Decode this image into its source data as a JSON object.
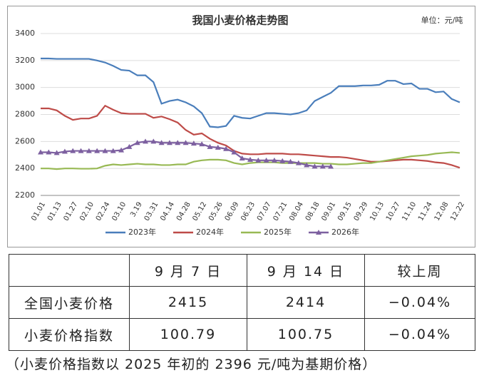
{
  "chart_data": {
    "type": "line",
    "title": "我国小麦价格走势图",
    "unit_note": "单位：元/吨",
    "categories": [
      "01.01",
      null,
      "01.13",
      null,
      "01.27",
      null,
      "02.10",
      null,
      "02.24",
      null,
      "03.10",
      null,
      "3.19",
      null,
      "03.31",
      null,
      "04.14",
      null,
      "04.28",
      null,
      "05.12",
      null,
      "05.26",
      null,
      "06.09",
      null,
      "06.23",
      null,
      "07.07",
      null,
      "07.21",
      null,
      "08.04",
      null,
      "08.18",
      null,
      "09.01",
      null,
      "09.15",
      null,
      "09.29",
      null,
      "10.13",
      null,
      "10.27",
      null,
      "11.10",
      null,
      "11.24",
      null,
      "12.08",
      null,
      "12.22"
    ],
    "ylim": [
      2200,
      3400
    ],
    "yticks": [
      2200,
      2400,
      2600,
      2800,
      3000,
      3200,
      3400
    ],
    "grid": true,
    "legend": "bottom",
    "series": [
      {
        "name": "2023年",
        "color": "#4a7ebb",
        "marker": "none",
        "values": [
          3215,
          3215,
          3212,
          3212,
          3212,
          3212,
          3212,
          3200,
          3185,
          3160,
          3130,
          3125,
          3090,
          3090,
          3040,
          2880,
          2900,
          2910,
          2890,
          2860,
          2810,
          2710,
          2705,
          2715,
          2790,
          2775,
          2770,
          2790,
          2810,
          2810,
          2805,
          2800,
          2810,
          2830,
          2900,
          2930,
          2960,
          3010,
          3010,
          3010,
          3015,
          3015,
          3020,
          3050,
          3050,
          3025,
          3030,
          2990,
          2990,
          2965,
          2970,
          2915,
          2890
        ]
      },
      {
        "name": "2024年",
        "color": "#be4b48",
        "marker": "none",
        "values": [
          2845,
          2845,
          2830,
          2790,
          2760,
          2770,
          2770,
          2790,
          2865,
          2835,
          2810,
          2805,
          2805,
          2805,
          2775,
          2785,
          2765,
          2740,
          2685,
          2650,
          2660,
          2620,
          2590,
          2570,
          2530,
          2510,
          2505,
          2505,
          2510,
          2510,
          2510,
          2505,
          2505,
          2500,
          2495,
          2490,
          2485,
          2485,
          2480,
          2470,
          2460,
          2450,
          2450,
          2455,
          2460,
          2465,
          2465,
          2460,
          2455,
          2445,
          2440,
          2425,
          2405
        ]
      },
      {
        "name": "2025年",
        "color": "#98b954",
        "marker": "none",
        "values": [
          2400,
          2400,
          2395,
          2400,
          2400,
          2398,
          2398,
          2400,
          2420,
          2430,
          2425,
          2430,
          2435,
          2430,
          2430,
          2425,
          2425,
          2430,
          2430,
          2450,
          2460,
          2465,
          2465,
          2460,
          2440,
          2430,
          2440,
          2445,
          2445,
          2445,
          2440,
          2440,
          2440,
          2440,
          2440,
          2435,
          2435,
          2430,
          2430,
          2435,
          2440,
          2440,
          2450,
          2460,
          2470,
          2480,
          2490,
          2495,
          2500,
          2510,
          2515,
          2520,
          2515
        ]
      },
      {
        "name": "2026年",
        "color": "#7d60a0",
        "marker": "triangle",
        "values": [
          2520,
          2520,
          2515,
          2525,
          2530,
          2530,
          2530,
          2530,
          2530,
          2530,
          2535,
          2560,
          2590,
          2600,
          2600,
          2590,
          2590,
          2590,
          2590,
          2585,
          2580,
          2560,
          2555,
          2545,
          2520,
          2475,
          2465,
          2460,
          2460,
          2460,
          2455,
          2450,
          2440,
          2425,
          2415,
          2415,
          2414,
          null,
          null,
          null,
          null,
          null,
          null,
          null,
          null,
          null,
          null,
          null,
          null,
          null,
          null,
          null,
          null
        ]
      }
    ]
  },
  "table": {
    "header": [
      "9 月 7 日",
      "9 月 14 日",
      "较上周"
    ],
    "rows": [
      [
        "全国小麦价格",
        "2415",
        "2414",
        "−0.04%"
      ],
      [
        "小麦价格指数",
        "100.79",
        "100.75",
        "−0.04%"
      ]
    ]
  },
  "footnote": "（小麦价格指数以 2025 年初的 2396 元/吨为基期价格）"
}
